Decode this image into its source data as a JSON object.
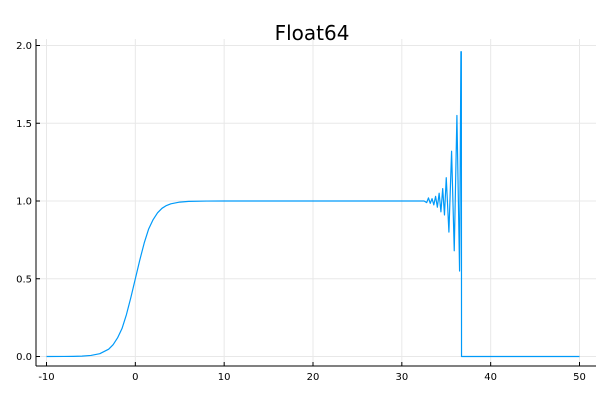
{
  "chart_data": {
    "type": "line",
    "title": "Float64",
    "xlabel": "",
    "ylabel": "",
    "xlim": [
      -10,
      50
    ],
    "ylim": [
      0,
      2
    ],
    "grid": true,
    "legend": "none",
    "x_ticks": [
      -10,
      0,
      10,
      20,
      30,
      40,
      50
    ],
    "x_tick_labels": [
      "-10",
      "0",
      "10",
      "20",
      "30",
      "40",
      "50"
    ],
    "y_ticks": [
      0,
      0.5,
      1,
      1.5,
      2
    ],
    "y_tick_labels": [
      "0.0",
      "0.5",
      "1.0",
      "1.5",
      "2.0"
    ],
    "colors": {
      "series": "#009af9",
      "grid": "#e8e8e8",
      "axis": "#000000"
    },
    "series": [
      {
        "x": [
          -10,
          -8,
          -7,
          -6,
          -5,
          -4,
          -3,
          -2.5,
          -2,
          -1.5,
          -1,
          -0.5,
          0,
          0.5,
          1,
          1.5,
          2,
          2.5,
          3,
          3.5,
          4,
          5,
          6,
          8,
          10,
          20,
          30,
          32,
          32.5,
          32.8,
          33.0,
          33.2,
          33.4,
          33.6,
          33.8,
          34.0,
          34.2,
          34.4,
          34.6,
          34.8,
          35.0,
          35.3,
          35.6,
          35.9,
          36.2,
          36.5,
          36.65,
          36.7,
          36.72,
          40,
          45,
          50
        ],
        "y": [
          0.0,
          0.0003,
          0.0009,
          0.0025,
          0.0067,
          0.018,
          0.047,
          0.076,
          0.12,
          0.18,
          0.27,
          0.38,
          0.5,
          0.62,
          0.73,
          0.82,
          0.88,
          0.924,
          0.953,
          0.971,
          0.982,
          0.993,
          0.9975,
          0.9997,
          1.0,
          1.0,
          1.0,
          1.0,
          1.0,
          0.99,
          1.02,
          0.985,
          1.015,
          0.975,
          1.03,
          0.96,
          1.05,
          0.93,
          1.08,
          0.91,
          1.15,
          0.8,
          1.32,
          0.68,
          1.55,
          0.55,
          1.96,
          1.96,
          0.0,
          0.0,
          0.0,
          0.0
        ]
      }
    ]
  }
}
